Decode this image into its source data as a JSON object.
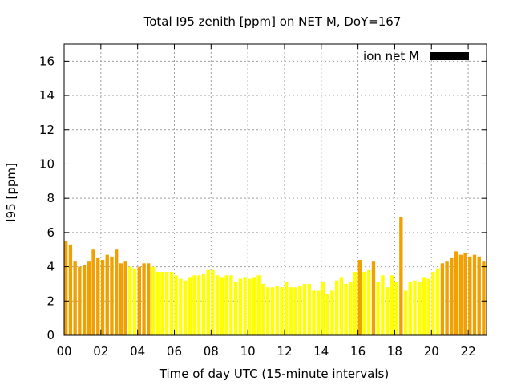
{
  "chart_data": {
    "type": "bar",
    "title": "Total I95 zenith [ppm] on NET M, DoY=167",
    "xlabel": "Time of day UTC (15-minute intervals)",
    "ylabel": "I95 [ppm]",
    "xlim": [
      0,
      23
    ],
    "ylim": [
      0,
      17
    ],
    "x_ticks": [
      "00",
      "02",
      "04",
      "06",
      "08",
      "10",
      "12",
      "14",
      "16",
      "18",
      "20",
      "22"
    ],
    "y_ticks": [
      "0",
      "2",
      "4",
      "6",
      "8",
      "10",
      "12",
      "14",
      "16"
    ],
    "grid": true,
    "legend": {
      "label": "ion net M",
      "color": "#000000",
      "position": "top-right"
    },
    "bar_width_hours": 0.19,
    "colors": {
      "orange": "#f0a000",
      "yellow": "#ffff00"
    },
    "series": [
      {
        "start_hour": 0.0,
        "step_hours": 0.25,
        "values": [
          5.5,
          5.3,
          4.3,
          4.0,
          4.1,
          4.3,
          5.0,
          4.5,
          4.4,
          4.7,
          4.6,
          5.0,
          4.2,
          4.3,
          4.0,
          3.9,
          4.0,
          4.2,
          4.2,
          4.0,
          3.7,
          3.7,
          3.7,
          3.7,
          3.5,
          3.3,
          3.2,
          3.4,
          3.5,
          3.5,
          3.6,
          3.8,
          3.8,
          3.5,
          3.4,
          3.5,
          3.5,
          3.1,
          3.3,
          3.4,
          3.3,
          3.4,
          3.5,
          3.0,
          2.8,
          2.8,
          2.9,
          2.8,
          3.1,
          2.8,
          2.8,
          2.9,
          3.0,
          3.0,
          2.6,
          2.6,
          3.1,
          2.4,
          2.6,
          3.2,
          3.4,
          3.0,
          3.1,
          3.7,
          4.4,
          3.7,
          3.8,
          4.3,
          3.1,
          3.5,
          2.8,
          3.5,
          3.1,
          6.9,
          2.6,
          3.1,
          3.2,
          3.1,
          3.4,
          3.3,
          3.7,
          3.9,
          4.2,
          4.3,
          4.5,
          4.9,
          4.7,
          4.8,
          4.6,
          4.7,
          4.6,
          4.3
        ],
        "color_keys": [
          "orange",
          "orange",
          "orange",
          "orange",
          "orange",
          "orange",
          "orange",
          "orange",
          "orange",
          "orange",
          "orange",
          "orange",
          "orange",
          "orange",
          "yellow",
          "yellow",
          "orange",
          "orange",
          "orange",
          "yellow",
          "yellow",
          "yellow",
          "yellow",
          "yellow",
          "yellow",
          "yellow",
          "yellow",
          "yellow",
          "yellow",
          "yellow",
          "yellow",
          "yellow",
          "yellow",
          "yellow",
          "yellow",
          "yellow",
          "yellow",
          "yellow",
          "yellow",
          "yellow",
          "yellow",
          "yellow",
          "yellow",
          "yellow",
          "yellow",
          "yellow",
          "yellow",
          "yellow",
          "yellow",
          "yellow",
          "yellow",
          "yellow",
          "yellow",
          "yellow",
          "yellow",
          "yellow",
          "yellow",
          "yellow",
          "yellow",
          "yellow",
          "yellow",
          "yellow",
          "yellow",
          "yellow",
          "orange",
          "yellow",
          "yellow",
          "orange",
          "yellow",
          "yellow",
          "yellow",
          "yellow",
          "yellow",
          "orange",
          "yellow",
          "yellow",
          "yellow",
          "yellow",
          "yellow",
          "yellow",
          "yellow",
          "yellow",
          "orange",
          "orange",
          "orange",
          "orange",
          "orange",
          "orange",
          "orange",
          "orange",
          "orange",
          "orange"
        ]
      }
    ]
  }
}
